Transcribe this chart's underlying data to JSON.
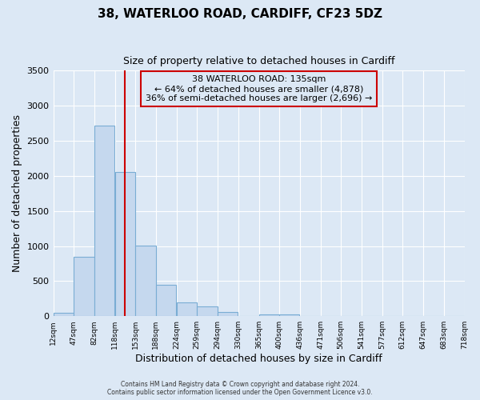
{
  "title": "38, WATERLOO ROAD, CARDIFF, CF23 5DZ",
  "subtitle": "Size of property relative to detached houses in Cardiff",
  "xlabel": "Distribution of detached houses by size in Cardiff",
  "ylabel": "Number of detached properties",
  "bin_edges": [
    12,
    47,
    82,
    118,
    153,
    188,
    224,
    259,
    294,
    330,
    365,
    400,
    436,
    471,
    506,
    541,
    577,
    612,
    647,
    683,
    718
  ],
  "counts": [
    50,
    850,
    2720,
    2060,
    1010,
    450,
    200,
    140,
    60,
    0,
    30,
    20,
    0,
    0,
    0,
    0,
    0,
    0,
    0,
    0
  ],
  "bar_color": "#c5d8ee",
  "bar_edge_color": "#7aadd4",
  "vline_x": 135,
  "vline_color": "#cc0000",
  "annotation_title": "38 WATERLOO ROAD: 135sqm",
  "annotation_line1": "← 64% of detached houses are smaller (4,878)",
  "annotation_line2": "36% of semi-detached houses are larger (2,696) →",
  "annotation_box_color": "#cc0000",
  "ylim": [
    0,
    3500
  ],
  "yticks": [
    0,
    500,
    1000,
    1500,
    2000,
    2500,
    3000,
    3500
  ],
  "tick_labels": [
    "12sqm",
    "47sqm",
    "82sqm",
    "118sqm",
    "153sqm",
    "188sqm",
    "224sqm",
    "259sqm",
    "294sqm",
    "330sqm",
    "365sqm",
    "400sqm",
    "436sqm",
    "471sqm",
    "506sqm",
    "541sqm",
    "577sqm",
    "612sqm",
    "647sqm",
    "683sqm",
    "718sqm"
  ],
  "footer1": "Contains HM Land Registry data © Crown copyright and database right 2024.",
  "footer2": "Contains public sector information licensed under the Open Government Licence v3.0.",
  "fig_bg_color": "#dce8f5",
  "plot_bg_color": "#dce8f5",
  "grid_color": "#ffffff"
}
